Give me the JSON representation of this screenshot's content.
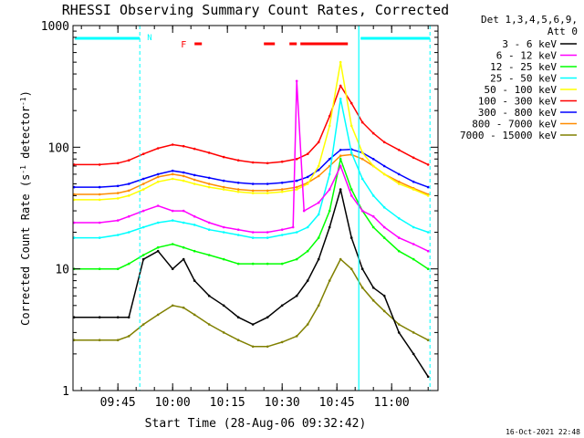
{
  "chart_data": {
    "type": "line",
    "title": "RHESSI Observing Summary Count Rates, Corrected",
    "xlabel": "Start Time (28-Aug-06 09:32:42)",
    "ylabel": "Corrected Count Rate (s",
    "ylabel_sup": "-1",
    "ylabel_mid": " detector",
    "ylabel_sup2": "-1",
    "ylabel_end": ")",
    "y_scale": "log",
    "ylim": [
      1,
      1000
    ],
    "xlim": [
      "09:32:42",
      "11:12:42"
    ],
    "x_tick_labels": [
      "09:45",
      "10:00",
      "10:15",
      "10:30",
      "10:45",
      "11:00"
    ],
    "y_tick_labels": [
      "1",
      "10",
      "100",
      "1000"
    ],
    "legend_header": [
      "Det 1,3,4,5,6,9,",
      "Att 0"
    ],
    "legend_position": "top-right",
    "flag_labels": {
      "night": "N",
      "flare": "F"
    },
    "timestamp": "16-Oct-2021 22:48",
    "series": [
      {
        "name": "3 - 6 keV",
        "color": "#000000",
        "x": [
          "09:33",
          "09:40",
          "09:45",
          "09:48",
          "09:52",
          "09:56",
          "10:00",
          "10:03",
          "10:06",
          "10:10",
          "10:14",
          "10:18",
          "10:22",
          "10:26",
          "10:30",
          "10:34",
          "10:37",
          "10:40",
          "10:43",
          "10:46",
          "10:49",
          "10:52",
          "10:55",
          "10:58",
          "11:02",
          "11:06",
          "11:10"
        ],
        "y": [
          4,
          4,
          4,
          4,
          12,
          14,
          10,
          12,
          8,
          6,
          5,
          4,
          3.5,
          4,
          5,
          6,
          8,
          12,
          22,
          45,
          18,
          10,
          7,
          6,
          3,
          2,
          1.3
        ]
      },
      {
        "name": "6 - 12 keV",
        "color": "#ff00ff",
        "x": [
          "09:33",
          "09:40",
          "09:45",
          "09:48",
          "09:52",
          "09:56",
          "10:00",
          "10:03",
          "10:06",
          "10:10",
          "10:14",
          "10:18",
          "10:22",
          "10:26",
          "10:30",
          "10:33",
          "10:34",
          "10:36",
          "10:40",
          "10:43",
          "10:46",
          "10:49",
          "10:52",
          "10:55",
          "10:58",
          "11:02",
          "11:06",
          "11:10"
        ],
        "y": [
          24,
          24,
          25,
          27,
          30,
          33,
          30,
          30,
          27,
          24,
          22,
          21,
          20,
          20,
          21,
          22,
          350,
          30,
          35,
          45,
          70,
          40,
          30,
          27,
          22,
          18,
          16,
          14
        ]
      },
      {
        "name": "12 - 25 keV",
        "color": "#00ff00",
        "x": [
          "09:33",
          "09:40",
          "09:45",
          "09:48",
          "09:52",
          "09:56",
          "10:00",
          "10:03",
          "10:06",
          "10:10",
          "10:14",
          "10:18",
          "10:22",
          "10:26",
          "10:30",
          "10:34",
          "10:37",
          "10:40",
          "10:43",
          "10:46",
          "10:49",
          "10:52",
          "10:55",
          "10:58",
          "11:02",
          "11:06",
          "11:10"
        ],
        "y": [
          10,
          10,
          10,
          11,
          13,
          15,
          16,
          15,
          14,
          13,
          12,
          11,
          11,
          11,
          11,
          12,
          14,
          18,
          30,
          80,
          45,
          30,
          22,
          18,
          14,
          12,
          10
        ]
      },
      {
        "name": "25 - 50 keV",
        "color": "#00ffff",
        "x": [
          "09:33",
          "09:40",
          "09:45",
          "09:48",
          "09:52",
          "09:56",
          "10:00",
          "10:03",
          "10:06",
          "10:10",
          "10:14",
          "10:18",
          "10:22",
          "10:26",
          "10:30",
          "10:34",
          "10:37",
          "10:40",
          "10:43",
          "10:46",
          "10:49",
          "10:52",
          "10:55",
          "10:58",
          "11:02",
          "11:06",
          "11:10"
        ],
        "y": [
          18,
          18,
          19,
          20,
          22,
          24,
          25,
          24,
          23,
          21,
          20,
          19,
          18,
          18,
          19,
          20,
          22,
          28,
          60,
          250,
          90,
          55,
          40,
          32,
          26,
          22,
          20
        ]
      },
      {
        "name": "50 - 100 keV",
        "color": "#ffff00",
        "x": [
          "09:33",
          "09:40",
          "09:45",
          "09:48",
          "09:52",
          "09:56",
          "10:00",
          "10:03",
          "10:06",
          "10:10",
          "10:14",
          "10:18",
          "10:22",
          "10:26",
          "10:30",
          "10:34",
          "10:37",
          "10:40",
          "10:43",
          "10:46",
          "10:49",
          "10:52",
          "10:55",
          "10:58",
          "11:02",
          "11:06",
          "11:10"
        ],
        "y": [
          37,
          37,
          38,
          40,
          45,
          52,
          55,
          53,
          50,
          47,
          45,
          43,
          42,
          42,
          43,
          45,
          50,
          70,
          150,
          500,
          150,
          90,
          70,
          60,
          50,
          45,
          40
        ]
      },
      {
        "name": "100 - 300 keV",
        "color": "#ff0000",
        "x": [
          "09:33",
          "09:40",
          "09:45",
          "09:48",
          "09:52",
          "09:56",
          "10:00",
          "10:03",
          "10:06",
          "10:10",
          "10:14",
          "10:18",
          "10:22",
          "10:26",
          "10:30",
          "10:34",
          "10:37",
          "10:40",
          "10:43",
          "10:46",
          "10:49",
          "10:52",
          "10:55",
          "10:58",
          "11:02",
          "11:06",
          "11:10"
        ],
        "y": [
          72,
          72,
          74,
          78,
          88,
          98,
          105,
          102,
          97,
          90,
          83,
          78,
          75,
          74,
          76,
          80,
          88,
          110,
          180,
          320,
          230,
          160,
          130,
          110,
          95,
          82,
          72
        ]
      },
      {
        "name": "300 - 800 keV",
        "color": "#0000ff",
        "x": [
          "09:33",
          "09:40",
          "09:45",
          "09:48",
          "09:52",
          "09:56",
          "10:00",
          "10:03",
          "10:06",
          "10:10",
          "10:14",
          "10:18",
          "10:22",
          "10:26",
          "10:30",
          "10:34",
          "10:37",
          "10:40",
          "10:43",
          "10:46",
          "10:49",
          "10:52",
          "10:55",
          "10:58",
          "11:02",
          "11:06",
          "11:10"
        ],
        "y": [
          47,
          47,
          48,
          50,
          55,
          60,
          64,
          62,
          59,
          56,
          53,
          51,
          50,
          50,
          51,
          53,
          57,
          65,
          80,
          95,
          96,
          90,
          80,
          70,
          60,
          52,
          47
        ]
      },
      {
        "name": "800 - 7000 keV",
        "color": "#ff8c00",
        "x": [
          "09:33",
          "09:40",
          "09:45",
          "09:48",
          "09:52",
          "09:56",
          "10:00",
          "10:03",
          "10:06",
          "10:10",
          "10:14",
          "10:18",
          "10:22",
          "10:26",
          "10:30",
          "10:34",
          "10:37",
          "10:40",
          "10:43",
          "10:46",
          "10:49",
          "10:52",
          "10:55",
          "10:58",
          "11:02",
          "11:06",
          "11:10"
        ],
        "y": [
          41,
          41,
          42,
          44,
          50,
          57,
          60,
          58,
          54,
          50,
          47,
          45,
          44,
          44,
          45,
          47,
          51,
          58,
          70,
          85,
          87,
          80,
          70,
          60,
          52,
          46,
          41
        ]
      },
      {
        "name": "7000 - 15000 keV",
        "color": "#808000",
        "x": [
          "09:33",
          "09:40",
          "09:45",
          "09:48",
          "09:52",
          "09:56",
          "10:00",
          "10:03",
          "10:06",
          "10:10",
          "10:14",
          "10:18",
          "10:22",
          "10:26",
          "10:30",
          "10:34",
          "10:37",
          "10:40",
          "10:43",
          "10:46",
          "10:49",
          "10:52",
          "10:55",
          "10:58",
          "11:02",
          "11:06",
          "11:10"
        ],
        "y": [
          2.6,
          2.6,
          2.6,
          2.8,
          3.5,
          4.2,
          5,
          4.8,
          4.2,
          3.5,
          3,
          2.6,
          2.3,
          2.3,
          2.5,
          2.8,
          3.5,
          5,
          8,
          12,
          10,
          7,
          5.5,
          4.5,
          3.5,
          3,
          2.6
        ]
      }
    ],
    "attenuator_lines": [
      "09:32:42",
      "11:12:42"
    ],
    "flare_peak_line": "10:51",
    "night_line": "09:51",
    "night_bars": [
      [
        "09:32:42",
        "09:51"
      ],
      [
        "10:51",
        "11:10:30"
      ]
    ],
    "flare_bars": [
      [
        "10:06",
        "10:08"
      ],
      [
        "10:25",
        "10:28"
      ],
      [
        "10:32",
        "10:34"
      ],
      [
        "10:35",
        "10:48"
      ]
    ]
  }
}
